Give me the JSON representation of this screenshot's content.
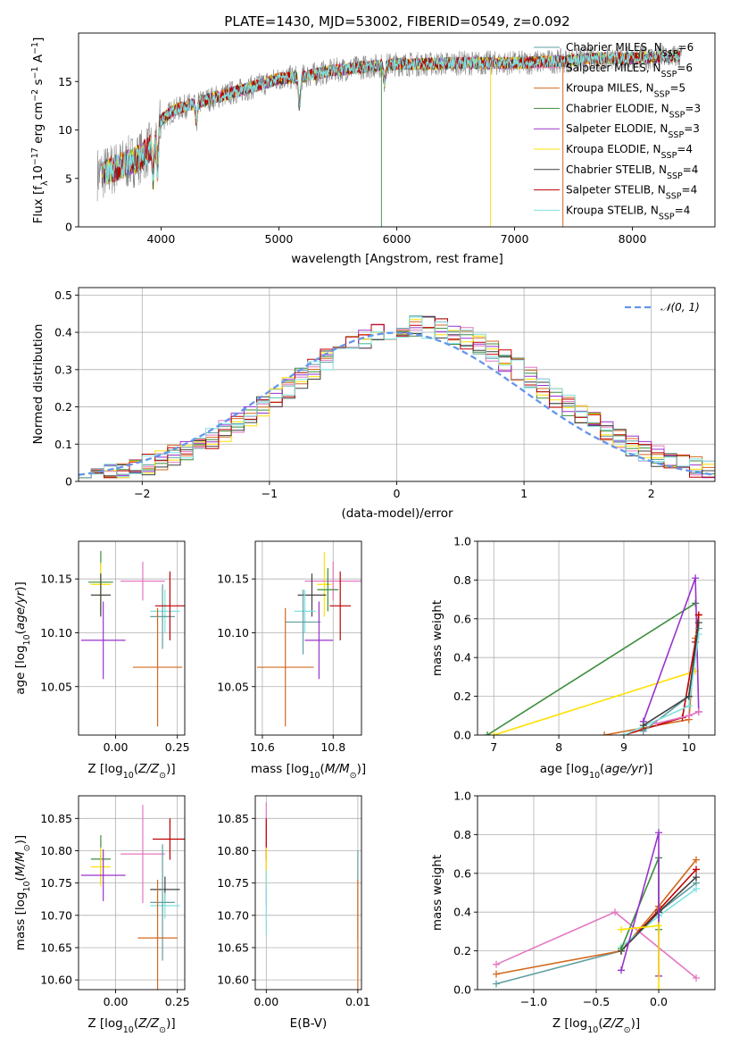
{
  "title": "PLATE=1430, MJD=53002, FIBERID=0549, z=0.092",
  "colors": {
    "chabrier_miles": "#5f9ea0",
    "salpeter_miles": "#e377c2",
    "kroupa_miles": "#d2691e",
    "chabrier_elodie": "#3c8c3c",
    "salpeter_elodie": "#9932cc",
    "kroupa_elodie": "#ffe000",
    "chabrier_stelib": "#404040",
    "salpeter_stelib": "#c00000",
    "kroupa_stelib": "#80e0e0",
    "data": "#888888",
    "normal": "#6495ed",
    "grid": "#b0b0b0"
  },
  "chart_data": [
    {
      "panel": "spectrum",
      "type": "line",
      "xlabel": "wavelength [Angstrom, rest frame]",
      "ylabel": "Flux [fλ10⁻¹⁷ erg cm⁻² s⁻¹ A⁻¹]",
      "xlim": [
        3300,
        8700
      ],
      "ylim": [
        0,
        20
      ],
      "xticks": [
        4000,
        5000,
        6000,
        7000,
        8000
      ],
      "yticks": [
        0,
        5,
        10,
        15
      ],
      "grid": false,
      "legend": "top-right",
      "legend_entries": [
        {
          "label": "Chabrier MILES, N",
          "sub": "SSP",
          "tail": "=6",
          "key": "chabrier_miles"
        },
        {
          "label": "Salpeter MILES, N",
          "sub": "SSP",
          "tail": "=6",
          "key": "salpeter_miles"
        },
        {
          "label": "Kroupa MILES, N",
          "sub": "SSP",
          "tail": "=5",
          "key": "kroupa_miles"
        },
        {
          "label": "Chabrier ELODIE, N",
          "sub": "SSP",
          "tail": "=3",
          "key": "chabrier_elodie"
        },
        {
          "label": "Salpeter ELODIE, N",
          "sub": "SSP",
          "tail": "=3",
          "key": "salpeter_elodie"
        },
        {
          "label": "Kroupa ELODIE, N",
          "sub": "SSP",
          "tail": "=4",
          "key": "kroupa_elodie"
        },
        {
          "label": "Chabrier STELIB, N",
          "sub": "SSP",
          "tail": "=4",
          "key": "chabrier_stelib"
        },
        {
          "label": "Salpeter STELIB, N",
          "sub": "SSP",
          "tail": "=4",
          "key": "salpeter_stelib"
        },
        {
          "label": "Kroupa STELIB, N",
          "sub": "SSP",
          "tail": "=4",
          "key": "kroupa_stelib"
        }
      ],
      "continuum": {
        "wavelength": [
          3500,
          3600,
          3700,
          3800,
          3900,
          4000,
          4100,
          4300,
          4500,
          4800,
          5000,
          5200,
          5500,
          5800,
          6000,
          6300,
          6500,
          6800,
          7000,
          7200,
          7400,
          7600,
          7800,
          8000,
          8200,
          8400
        ],
        "flux": [
          5.5,
          6.0,
          6.5,
          7.0,
          8.0,
          11.0,
          12.0,
          12.8,
          13.5,
          14.5,
          15.3,
          15.5,
          16.2,
          16.6,
          16.8,
          16.8,
          16.9,
          16.9,
          16.9,
          17.0,
          17.1,
          17.3,
          17.4,
          17.4,
          17.5,
          17.6
        ]
      },
      "absorption_features": [
        {
          "wavelength": 3934,
          "depth": 0.45
        },
        {
          "wavelength": 3969,
          "depth": 0.4
        },
        {
          "wavelength": 4300,
          "depth": 0.15
        },
        {
          "wavelength": 5175,
          "depth": 0.2
        },
        {
          "wavelength": 5895,
          "depth": 0.1
        }
      ]
    },
    {
      "panel": "residuals",
      "type": "histogram",
      "xlabel": "(data-model)/error",
      "ylabel": "Normed distribution",
      "xlim": [
        -2.5,
        2.5
      ],
      "ylim": [
        0,
        0.52
      ],
      "xticks": [
        -2,
        -1,
        0,
        1,
        2
      ],
      "yticks": [
        0.0,
        0.1,
        0.2,
        0.3,
        0.4,
        0.5
      ],
      "grid": true,
      "legend": "top-right",
      "legend_label": "𝒩(0, 1)",
      "bin_width": 0.1
    },
    {
      "panel": "age_vs_Z",
      "type": "errorbar",
      "xlabel": "Z [log₁₀(Z/Z⊙)]",
      "ylabel": "age  [log₁₀(age/yr)]",
      "xlim": [
        -0.15,
        0.28
      ],
      "ylim": [
        10.005,
        10.185
      ],
      "xticks": [
        0.0,
        0.25
      ],
      "xticklabels": [
        "0.00",
        "0.25"
      ],
      "yticks": [
        10.05,
        10.1,
        10.15
      ],
      "yticklabels": [
        "10.05",
        "10.10",
        "10.15"
      ],
      "grid": true,
      "points": [
        {
          "key": "chabrier_elodie",
          "x": -0.06,
          "xerr": 0.05,
          "y": 10.147,
          "yerr": 0.029
        },
        {
          "key": "kroupa_elodie",
          "x": -0.06,
          "xerr": 0.04,
          "y": 10.145,
          "yerr": 0.02
        },
        {
          "key": "chabrier_stelib",
          "x": -0.06,
          "xerr": 0.04,
          "y": 10.135,
          "yerr": 0.02
        },
        {
          "key": "salpeter_elodie",
          "x": -0.05,
          "xerr": 0.09,
          "y": 10.093,
          "yerr": 0.036
        },
        {
          "key": "salpeter_miles",
          "x": 0.11,
          "xerr": 0.09,
          "y": 10.148,
          "yerr": 0.018
        },
        {
          "key": "kroupa_stelib",
          "x": 0.2,
          "xerr": 0.06,
          "y": 10.12,
          "yerr": 0.02
        },
        {
          "key": "chabrier_miles",
          "x": 0.19,
          "xerr": 0.05,
          "y": 10.115,
          "yerr": 0.03
        },
        {
          "key": "salpeter_stelib",
          "x": 0.22,
          "xerr": 0.06,
          "y": 10.125,
          "yerr": 0.032
        },
        {
          "key": "kroupa_miles",
          "x": 0.17,
          "xerr": 0.1,
          "y": 10.068,
          "yerr": 0.055
        }
      ]
    },
    {
      "panel": "age_vs_mass",
      "type": "errorbar",
      "xlabel": "mass [log₁₀(M/M⊙)]",
      "ylabel": "",
      "xlim": [
        10.58,
        10.88
      ],
      "ylim": [
        10.005,
        10.185
      ],
      "xticks": [
        10.6,
        10.8
      ],
      "xticklabels": [
        "10.6",
        "10.8"
      ],
      "yticks": [
        10.05,
        10.1,
        10.15
      ],
      "yticklabels": [
        "10.05",
        "10.10",
        "10.15"
      ],
      "grid": true,
      "points": [
        {
          "key": "kroupa_elodie",
          "x": 10.775,
          "xerr": 0.02,
          "y": 10.145,
          "yerr": 0.03
        },
        {
          "key": "salpeter_miles",
          "x": 10.8,
          "xerr": 0.08,
          "y": 10.148,
          "yerr": 0.018
        },
        {
          "key": "chabrier_stelib",
          "x": 10.74,
          "xerr": 0.04,
          "y": 10.135,
          "yerr": 0.02
        },
        {
          "key": "chabrier_elodie",
          "x": 10.785,
          "xerr": 0.03,
          "y": 10.14,
          "yerr": 0.02
        },
        {
          "key": "kroupa_stelib",
          "x": 10.72,
          "xerr": 0.03,
          "y": 10.12,
          "yerr": 0.02
        },
        {
          "key": "salpeter_stelib",
          "x": 10.82,
          "xerr": 0.03,
          "y": 10.125,
          "yerr": 0.032
        },
        {
          "key": "chabrier_miles",
          "x": 10.715,
          "xerr": 0.05,
          "y": 10.11,
          "yerr": 0.03
        },
        {
          "key": "salpeter_elodie",
          "x": 10.76,
          "xerr": 0.04,
          "y": 10.093,
          "yerr": 0.036
        },
        {
          "key": "kroupa_miles",
          "x": 10.665,
          "xerr": 0.08,
          "y": 10.068,
          "yerr": 0.055
        }
      ]
    },
    {
      "panel": "weight_vs_age",
      "type": "line",
      "xlabel": "age  [log₁₀(age/yr)]",
      "ylabel": "mass weight",
      "xlim": [
        6.75,
        10.4
      ],
      "ylim": [
        0,
        1
      ],
      "xticks": [
        7,
        8,
        9,
        10
      ],
      "yticks": [
        0.0,
        0.2,
        0.4,
        0.6,
        0.8,
        1.0
      ],
      "yticklabels": [
        "0.0",
        "0.2",
        "0.4",
        "0.6",
        "0.8",
        "1.0"
      ],
      "grid": true,
      "series": [
        {
          "key": "chabrier_elodie",
          "x": [
            6.9,
            10.1
          ],
          "y": [
            0.0,
            0.68
          ]
        },
        {
          "key": "kroupa_elodie",
          "x": [
            7.0,
            10.1
          ],
          "y": [
            0.0,
            0.33
          ]
        },
        {
          "key": "salpeter_elodie",
          "x": [
            9.3,
            10.1,
            10.15
          ],
          "y": [
            0.07,
            0.81,
            0.12
          ]
        },
        {
          "key": "kroupa_miles",
          "x": [
            8.7,
            10.0,
            10.1,
            10.15
          ],
          "y": [
            0.0,
            0.08,
            0.5,
            0.62
          ]
        },
        {
          "key": "salpeter_stelib",
          "x": [
            9.0,
            9.9,
            10.1,
            10.15
          ],
          "y": [
            0.0,
            0.09,
            0.48,
            0.62
          ]
        },
        {
          "key": "chabrier_miles",
          "x": [
            9.3,
            10.0,
            10.15
          ],
          "y": [
            0.02,
            0.2,
            0.55
          ]
        },
        {
          "key": "kroupa_stelib",
          "x": [
            9.0,
            10.0,
            10.15
          ],
          "y": [
            0.0,
            0.15,
            0.52
          ]
        },
        {
          "key": "chabrier_stelib",
          "x": [
            9.3,
            10.0,
            10.15
          ],
          "y": [
            0.05,
            0.2,
            0.58
          ]
        },
        {
          "key": "salpeter_miles",
          "x": [
            9.5,
            10.0,
            10.15
          ],
          "y": [
            0.06,
            0.1,
            0.12
          ]
        }
      ]
    },
    {
      "panel": "mass_vs_Z",
      "type": "errorbar",
      "xlabel": "Z [log₁₀(Z/Z⊙)]",
      "ylabel": "mass [log₁₀(M/M⊙)]",
      "xlim": [
        -0.15,
        0.28
      ],
      "ylim": [
        10.585,
        10.885
      ],
      "xticks": [
        0.0,
        0.25
      ],
      "xticklabels": [
        "0.00",
        "0.25"
      ],
      "yticks": [
        10.6,
        10.65,
        10.7,
        10.75,
        10.8,
        10.85
      ],
      "yticklabels": [
        "10.60",
        "10.65",
        "10.70",
        "10.75",
        "10.80",
        "10.85"
      ],
      "grid": true,
      "points": [
        {
          "key": "chabrier_elodie",
          "x": -0.06,
          "xerr": 0.04,
          "y": 10.787,
          "yerr": 0.037
        },
        {
          "key": "kroupa_elodie",
          "x": -0.06,
          "xerr": 0.04,
          "y": 10.775,
          "yerr": 0.03
        },
        {
          "key": "salpeter_elodie",
          "x": -0.05,
          "xerr": 0.09,
          "y": 10.762,
          "yerr": 0.04
        },
        {
          "key": "salpeter_miles",
          "x": 0.11,
          "xerr": 0.09,
          "y": 10.795,
          "yerr": 0.076
        },
        {
          "key": "salpeter_stelib",
          "x": 0.22,
          "xerr": 0.07,
          "y": 10.818,
          "yerr": 0.032
        },
        {
          "key": "chabrier_stelib",
          "x": 0.2,
          "xerr": 0.06,
          "y": 10.74,
          "yerr": 0.02
        },
        {
          "key": "kroupa_stelib",
          "x": 0.2,
          "xerr": 0.06,
          "y": 10.715,
          "yerr": 0.02
        },
        {
          "key": "chabrier_miles",
          "x": 0.19,
          "xerr": 0.05,
          "y": 10.72,
          "yerr": 0.09
        },
        {
          "key": "kroupa_miles",
          "x": 0.17,
          "xerr": 0.08,
          "y": 10.665,
          "yerr": 0.09
        }
      ]
    },
    {
      "panel": "mass_vs_EBV",
      "type": "errorbar",
      "xlabel": "E(B-V)",
      "ylabel": "",
      "xlim": [
        -0.0012,
        0.0104
      ],
      "ylim": [
        10.585,
        10.885
      ],
      "xticks": [
        0.0,
        0.01
      ],
      "xticklabels": [
        "0.00",
        "0.01"
      ],
      "yticks": [
        10.6,
        10.65,
        10.7,
        10.75,
        10.8,
        10.85
      ],
      "yticklabels": [
        "10.60",
        "10.65",
        "10.70",
        "10.75",
        "10.80",
        "10.85"
      ],
      "grid": true,
      "points": [
        {
          "key": "salpeter_miles",
          "x": 0.0,
          "xerr": 0.0,
          "y": 10.795,
          "yerr": 0.08
        },
        {
          "key": "salpeter_stelib",
          "x": 0.0,
          "xerr": 0.0,
          "y": 10.818,
          "yerr": 0.032
        },
        {
          "key": "kroupa_elodie",
          "x": 0.0,
          "xerr": 0.0,
          "y": 10.775,
          "yerr": 0.03
        },
        {
          "key": "kroupa_stelib",
          "x": 0.0,
          "xerr": 0.0,
          "y": 10.72,
          "yerr": 0.05
        },
        {
          "key": "chabrier_miles",
          "x": 0.01,
          "xerr": 0.0,
          "y": 10.73,
          "yerr": 0.07
        },
        {
          "key": "kroupa_miles",
          "x": 0.01,
          "xerr": 0.0,
          "y": 10.665,
          "yerr": 0.09
        }
      ]
    },
    {
      "panel": "weight_vs_Z",
      "type": "line",
      "xlabel": "Z [log₁₀(Z/Z⊙)]",
      "ylabel": "mass weight",
      "xlim": [
        -1.45,
        0.45
      ],
      "ylim": [
        0,
        1
      ],
      "xticks": [
        -1.0,
        -0.5,
        0.0
      ],
      "xticklabels": [
        "−1.0",
        "−0.5",
        "0.0"
      ],
      "yticks": [
        0.0,
        0.2,
        0.4,
        0.6,
        0.8,
        1.0
      ],
      "yticklabels": [
        "0.0",
        "0.2",
        "0.4",
        "0.6",
        "0.8",
        "1.0"
      ],
      "grid": true,
      "series": [
        {
          "key": "salpeter_miles",
          "x": [
            -1.3,
            -0.35,
            0.3
          ],
          "y": [
            0.13,
            0.4,
            0.06
          ]
        },
        {
          "key": "chabrier_miles",
          "x": [
            -1.3,
            -0.3,
            0.0,
            0.3
          ],
          "y": [
            0.03,
            0.2,
            0.4,
            0.55
          ]
        },
        {
          "key": "kroupa_miles",
          "x": [
            -1.3,
            -0.3,
            0.0,
            0.3
          ],
          "y": [
            0.08,
            0.2,
            0.43,
            0.67
          ]
        },
        {
          "key": "salpeter_stelib",
          "x": [
            -0.3,
            0.0,
            0.3
          ],
          "y": [
            0.2,
            0.41,
            0.62
          ]
        },
        {
          "key": "kroupa_stelib",
          "x": [
            -0.3,
            0.0,
            0.3
          ],
          "y": [
            0.22,
            0.38,
            0.52
          ]
        },
        {
          "key": "chabrier_stelib",
          "x": [
            -0.3,
            0.0,
            0.3
          ],
          "y": [
            0.2,
            0.4,
            0.58
          ]
        },
        {
          "key": "chabrier_elodie",
          "x": [
            -0.3,
            0.0,
            0.0
          ],
          "y": [
            0.21,
            0.68,
            0.31
          ]
        },
        {
          "key": "salpeter_elodie",
          "x": [
            -0.3,
            0.0,
            0.0
          ],
          "y": [
            0.1,
            0.81,
            0.07
          ]
        },
        {
          "key": "kroupa_elodie",
          "x": [
            -0.3,
            0.0,
            0.0
          ],
          "y": [
            0.31,
            0.33,
            0.0
          ]
        }
      ]
    }
  ]
}
